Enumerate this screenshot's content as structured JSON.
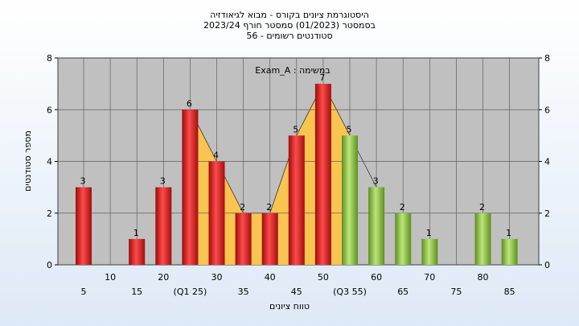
{
  "chart_data": {
    "type": "bar",
    "title_lines": [
      "היסטוגרמת ציונים בקורס - מבוא לגיאודזיה",
      "בסמסטר  (01/2023)  סמסטר חורף 2023/24",
      "סטודנטים רשומים - 56"
    ],
    "xlabel": "טווח ציונים",
    "ylabel": "מספר סטודנטים",
    "annotation": "Exam_A : במשימה",
    "ylim": [
      0,
      8
    ],
    "yticks": [
      0,
      2,
      4,
      6,
      8
    ],
    "categories": [
      5,
      10,
      15,
      20,
      25,
      30,
      35,
      40,
      45,
      50,
      55,
      60,
      65,
      70,
      75,
      80,
      85
    ],
    "x_tick_labels": [
      "5",
      "10",
      "15",
      "20",
      "(Q1 25)",
      "30",
      "35",
      "40",
      "45",
      "50",
      "(Q3 55)",
      "60",
      "65",
      "70",
      "75",
      "80",
      "85"
    ],
    "values": [
      3,
      0,
      1,
      3,
      6,
      4,
      2,
      2,
      5,
      7,
      5,
      3,
      2,
      1,
      0,
      2,
      1
    ],
    "labels": [
      "3",
      "",
      "1",
      "3",
      "6",
      "4",
      "2",
      "2",
      "5",
      "7",
      "5",
      "3",
      "2",
      "1",
      "",
      "2",
      "1"
    ],
    "bar_colors": [
      "red",
      "red",
      "red",
      "red",
      "red",
      "red",
      "red",
      "red",
      "red",
      "red",
      "green",
      "green",
      "green",
      "green",
      "green",
      "green",
      "green"
    ],
    "quartile_band": {
      "from": 25,
      "to": 55,
      "color": "#fcc44a"
    },
    "colors": {
      "plot_background": "#c0c0c0",
      "red_bar": "#e02020",
      "green_bar": "#8cc43c",
      "grid": "#606060"
    }
  }
}
